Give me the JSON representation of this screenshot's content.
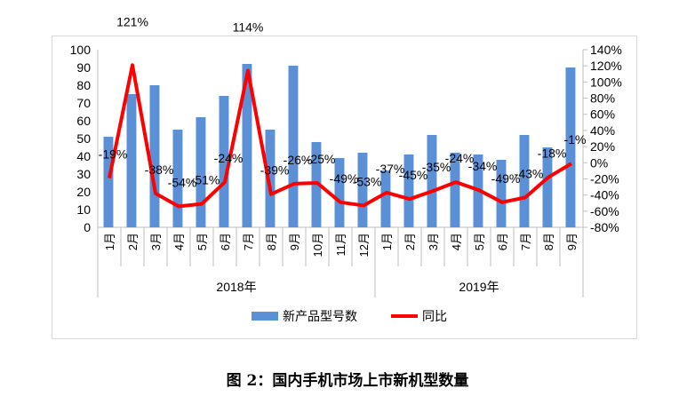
{
  "chart_data": {
    "type": "bar+line",
    "categories": [
      "1月",
      "2月",
      "3月",
      "4月",
      "5月",
      "6月",
      "7月",
      "8月",
      "9月",
      "10月",
      "11月",
      "12月",
      "1月",
      "2月",
      "3月",
      "4月",
      "5月",
      "6月",
      "7月",
      "8月",
      "9月"
    ],
    "groups": [
      {
        "label": "2018年",
        "count": 12
      },
      {
        "label": "2019年",
        "count": 9
      }
    ],
    "series": [
      {
        "name": "新产品型号数",
        "type": "bar",
        "axis": "left",
        "color": "#5b8fd6",
        "values": [
          51,
          75,
          80,
          55,
          62,
          74,
          92,
          55,
          91,
          48,
          39,
          42,
          32,
          41,
          52,
          42,
          41,
          38,
          52,
          45,
          90
        ]
      },
      {
        "name": "同比",
        "type": "line",
        "axis": "right",
        "color": "#ff0000",
        "values": [
          -19,
          121,
          -38,
          -54,
          -51,
          -24,
          114,
          -39,
          -26,
          -25,
          -49,
          -53,
          -37,
          -45,
          -35,
          -24,
          -34,
          -49,
          -43,
          -18,
          -1
        ],
        "labels": [
          "-19%",
          "121%",
          "-38%",
          "-54%",
          "-51%",
          "-24%",
          "114%",
          "-39%",
          "-26%",
          "-25%",
          "-49%",
          "-53%",
          "-37%",
          "-45%",
          "-35%",
          "-24%",
          "-34%",
          "-49%",
          "-43%",
          "-18%",
          "-1%"
        ]
      }
    ],
    "left_axis": {
      "range": [
        0,
        100
      ],
      "ticks": [
        "0",
        "10",
        "20",
        "30",
        "40",
        "50",
        "60",
        "70",
        "80",
        "90",
        "100"
      ]
    },
    "right_axis": {
      "range": [
        -80,
        140
      ],
      "ticks": [
        "-80%",
        "-60%",
        "-40%",
        "-20%",
        "0%",
        "20%",
        "40%",
        "60%",
        "80%",
        "100%",
        "120%",
        "140%"
      ]
    },
    "legend": "bottom",
    "grid": false
  },
  "caption": "图 2：国内手机市场上市新机型数量"
}
